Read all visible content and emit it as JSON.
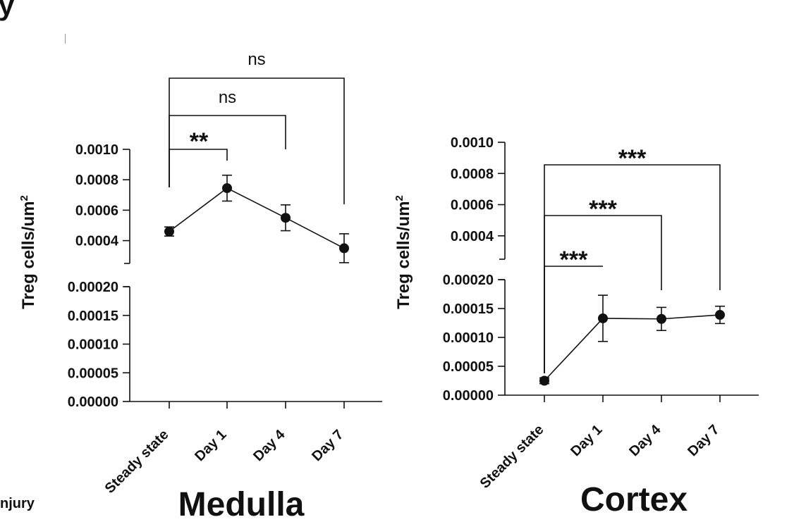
{
  "figure_fragments": {
    "top_left": "y",
    "bottom_left": "njury"
  },
  "chart_data": [
    {
      "type": "line",
      "title": "Medulla",
      "ylabel": "Treg cells/um",
      "ylabel_superscript": "2",
      "categories": [
        "Steady state",
        "Day 1",
        "Day 4",
        "Day 7"
      ],
      "broken_axis": true,
      "y_segments": [
        {
          "range": [
            0,
            0.0002
          ],
          "ticks": [
            "0.00000",
            "0.00005",
            "0.00010",
            "0.00015",
            "0.00020"
          ]
        },
        {
          "range": [
            0.00025,
            0.001
          ],
          "ticks": [
            "0.0004",
            "0.0006",
            "0.0008",
            "0.0010"
          ]
        }
      ],
      "series": [
        {
          "values": [
            0.00046,
            0.000745,
            0.00055,
            0.00035
          ],
          "error": [
            3e-05,
            8.5e-05,
            8.5e-05,
            9.5e-05
          ]
        }
      ],
      "comparisons": [
        {
          "from": "Steady state",
          "to": "Day 1",
          "label": "**"
        },
        {
          "from": "Steady state",
          "to": "Day 4",
          "label": "ns"
        },
        {
          "from": "Steady state",
          "to": "Day 7",
          "label": "ns"
        }
      ],
      "grid": false,
      "marker_color": "#111111"
    },
    {
      "type": "line",
      "title": "Cortex",
      "ylabel": "Treg cells/um",
      "ylabel_superscript": "2",
      "categories": [
        "Steady state",
        "Day 1",
        "Day 4",
        "Day 7"
      ],
      "broken_axis": true,
      "y_segments": [
        {
          "range": [
            0,
            0.0002
          ],
          "ticks": [
            "0.00000",
            "0.00005",
            "0.00010",
            "0.00015",
            "0.00020"
          ]
        },
        {
          "range": [
            0.00025,
            0.001
          ],
          "ticks": [
            "0.0004",
            "0.0006",
            "0.0008",
            "0.0010"
          ]
        }
      ],
      "series": [
        {
          "values": [
            2.5e-05,
            0.000133,
            0.000132,
            0.000139
          ],
          "error": [
            5e-06,
            4e-05,
            2e-05,
            1.5e-05
          ]
        }
      ],
      "comparisons": [
        {
          "from": "Steady state",
          "to": "Day 1",
          "label": "***"
        },
        {
          "from": "Steady state",
          "to": "Day 4",
          "label": "***"
        },
        {
          "from": "Steady state",
          "to": "Day 7",
          "label": "***"
        }
      ],
      "grid": false,
      "marker_color": "#111111"
    }
  ]
}
